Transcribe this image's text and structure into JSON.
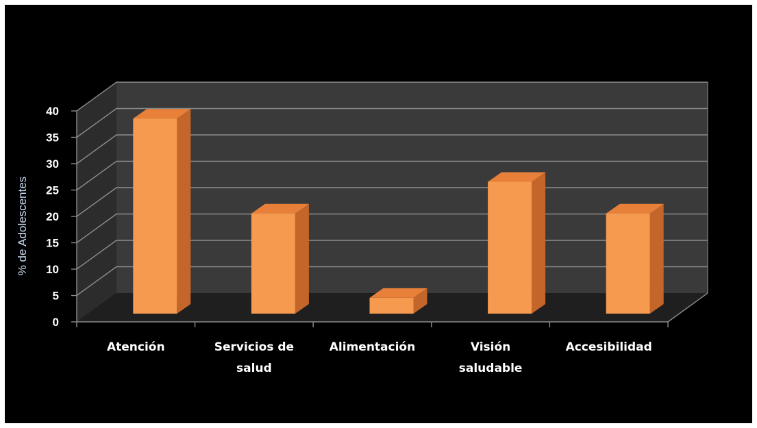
{
  "chart_data": {
    "type": "bar",
    "title": "",
    "xlabel": "",
    "ylabel": "% de Adolescentes",
    "categories": [
      [
        "Atención"
      ],
      [
        "Servicios de",
        "salud"
      ],
      [
        "Alimentación"
      ],
      [
        "Visión",
        "saludable"
      ],
      [
        "Accesibilidad"
      ]
    ],
    "values": [
      37,
      19,
      3,
      25,
      19
    ],
    "ylim": [
      0,
      40
    ],
    "yticks": [
      0,
      5,
      10,
      15,
      20,
      25,
      30,
      35,
      40
    ],
    "grid": true,
    "legend": "none",
    "three_d": true
  },
  "colors": {
    "page": "#ffffff",
    "background": "#000000",
    "back_wall": "#3a3a3a",
    "side_wall": "#2c2c2c",
    "floor": "#1f1f1f",
    "gridline": "#8c8c8c",
    "bar_front": "#f59a4e",
    "bar_side": "#c4662a",
    "bar_top": "#e8803a",
    "tick_text": "#ffffff",
    "axis_label": "#c9dcf2"
  }
}
